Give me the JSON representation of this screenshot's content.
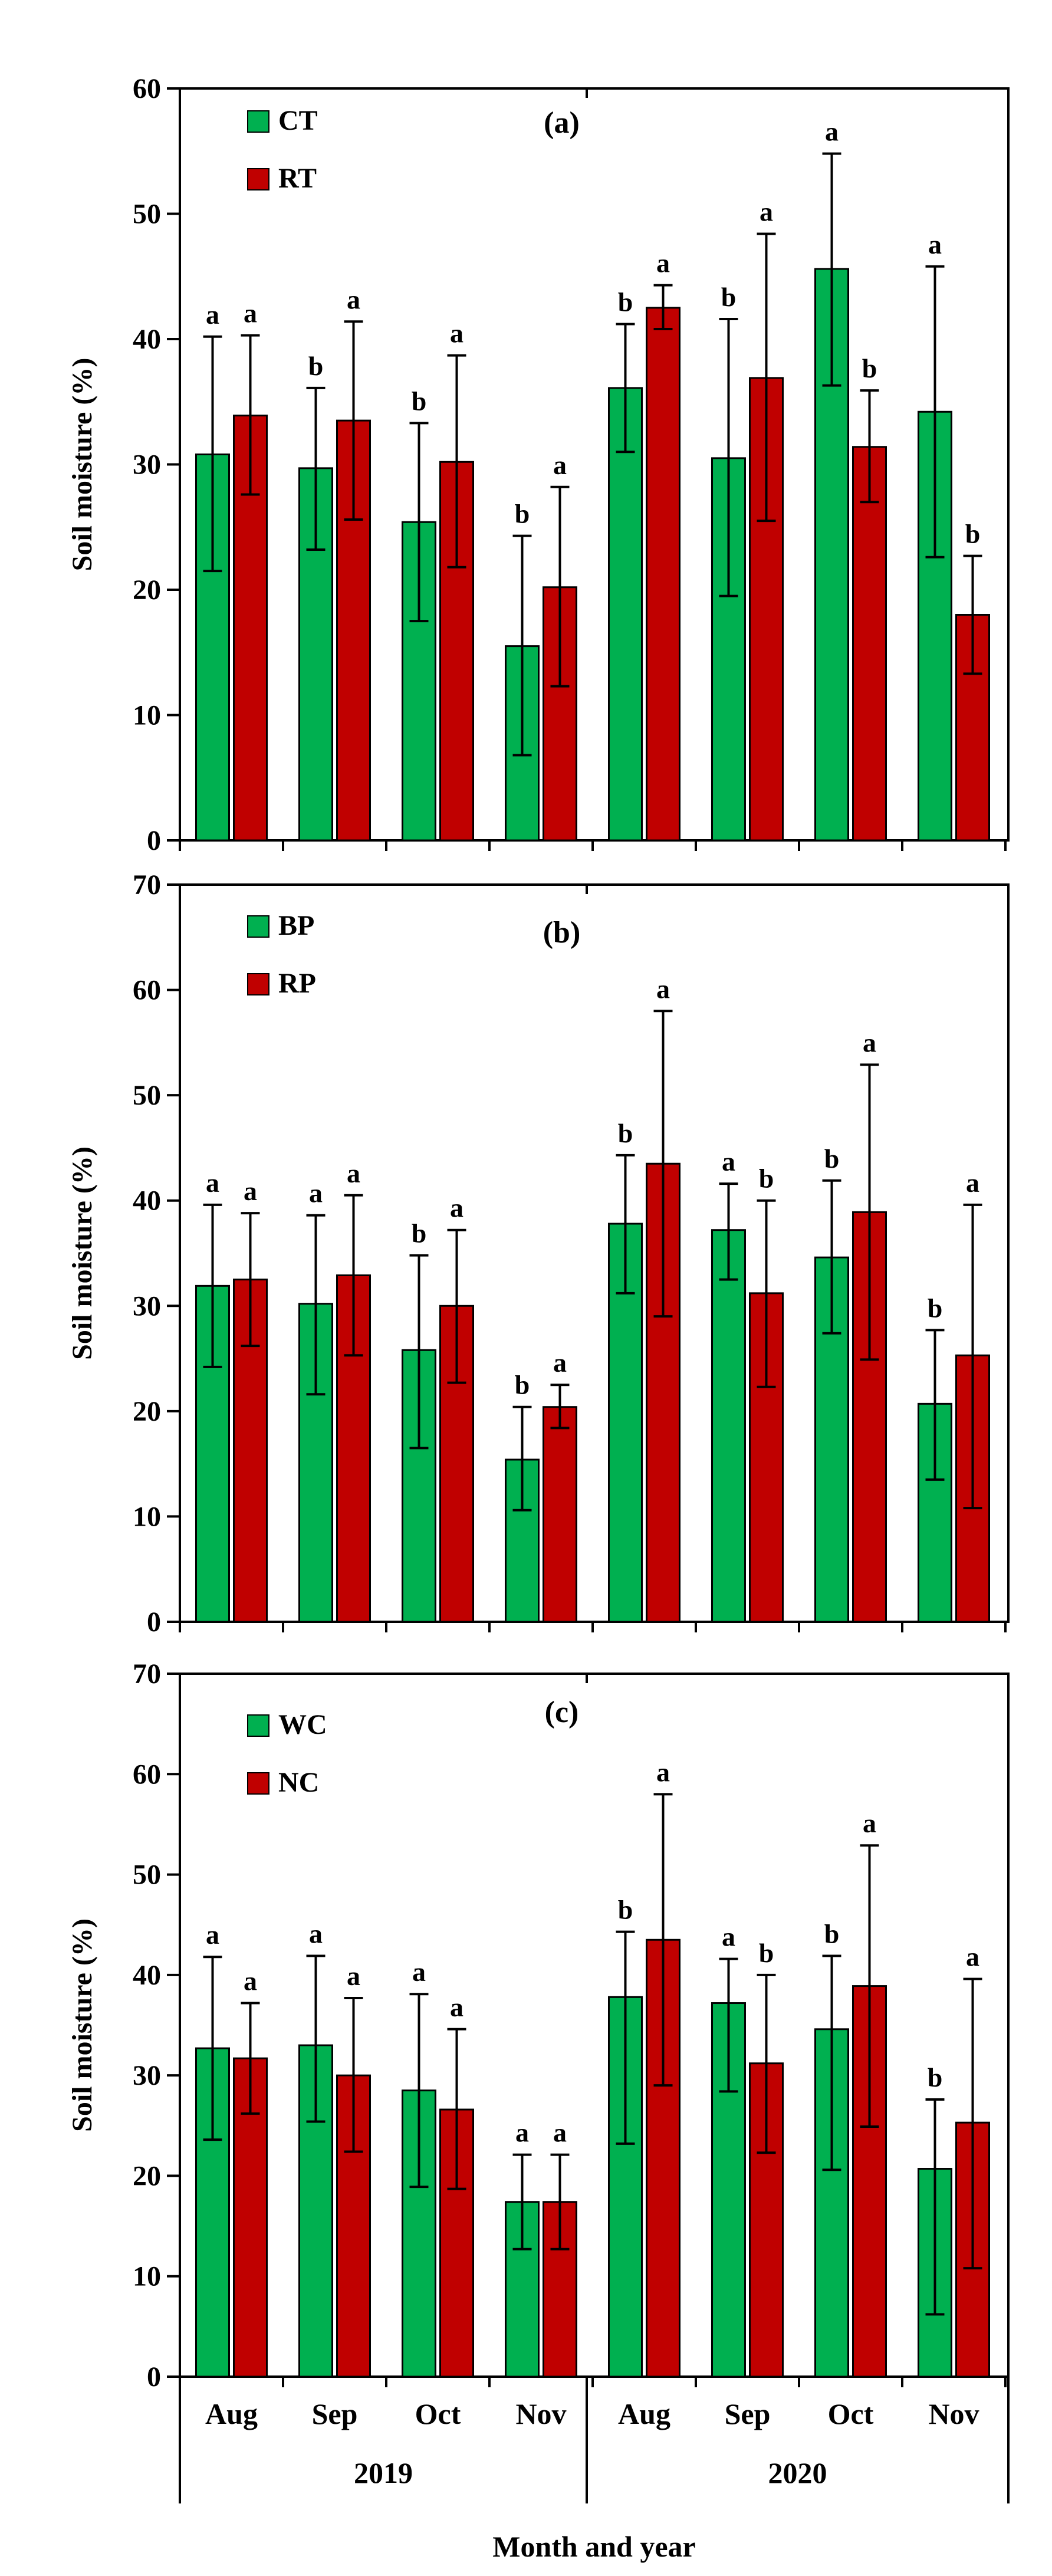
{
  "chart_data": [
    {
      "type": "bar",
      "title": "(a)",
      "ylabel": "Soil moisture (%)",
      "ylim": [
        0,
        60
      ],
      "yticks": [
        0,
        10,
        20,
        30,
        40,
        50,
        60
      ],
      "categories": [
        "Aug",
        "Sep",
        "Oct",
        "Nov",
        "Aug",
        "Sep",
        "Oct",
        "Nov"
      ],
      "series": [
        {
          "name": "CT",
          "color": "#00b050",
          "values": [
            30.8,
            29.7,
            25.4,
            15.5,
            36.1,
            30.5,
            45.6,
            34.2
          ],
          "err_low": [
            21.5,
            23.2,
            17.5,
            6.8,
            31.0,
            19.5,
            36.3,
            22.6
          ],
          "err_high": [
            40.2,
            36.1,
            33.3,
            24.3,
            41.2,
            41.6,
            54.8,
            45.8
          ],
          "labels": [
            "a",
            "b",
            "b",
            "b",
            "b",
            "b",
            "a",
            "a"
          ]
        },
        {
          "name": "RT",
          "color": "#c00000",
          "values": [
            33.9,
            33.5,
            30.2,
            20.2,
            42.5,
            36.9,
            31.4,
            18.0
          ],
          "err_low": [
            27.6,
            25.6,
            21.8,
            12.3,
            40.8,
            25.5,
            27.0,
            13.3
          ],
          "err_high": [
            40.3,
            41.4,
            38.7,
            28.2,
            44.3,
            48.4,
            35.9,
            22.7
          ],
          "labels": [
            "a",
            "a",
            "a",
            "a",
            "a",
            "a",
            "b",
            "b"
          ]
        }
      ]
    },
    {
      "type": "bar",
      "title": "(b)",
      "ylabel": "Soil moisture (%)",
      "ylim": [
        0,
        70
      ],
      "yticks": [
        0,
        10,
        20,
        30,
        40,
        50,
        60,
        70
      ],
      "categories": [
        "Aug",
        "Sep",
        "Oct",
        "Nov",
        "Aug",
        "Sep",
        "Oct",
        "Nov"
      ],
      "series": [
        {
          "name": "BP",
          "color": "#00b050",
          "values": [
            31.9,
            30.2,
            25.8,
            15.4,
            37.8,
            37.2,
            34.6,
            20.7
          ],
          "err_low": [
            24.2,
            21.6,
            16.5,
            10.6,
            31.2,
            32.5,
            27.4,
            13.5
          ],
          "err_high": [
            39.6,
            38.6,
            34.8,
            20.4,
            44.3,
            41.6,
            41.9,
            27.7
          ],
          "labels": [
            "a",
            "a",
            "b",
            "b",
            "b",
            "a",
            "b",
            "b"
          ]
        },
        {
          "name": "RP",
          "color": "#c00000",
          "values": [
            32.5,
            32.9,
            30.0,
            20.4,
            43.5,
            31.2,
            38.9,
            25.3
          ],
          "err_low": [
            26.2,
            25.3,
            22.7,
            18.4,
            29.0,
            22.3,
            24.9,
            10.8
          ],
          "err_high": [
            38.8,
            40.5,
            37.2,
            22.5,
            58.0,
            40.0,
            52.9,
            39.6
          ],
          "labels": [
            "a",
            "a",
            "a",
            "a",
            "a",
            "b",
            "a",
            "a"
          ]
        }
      ]
    },
    {
      "type": "bar",
      "title": "(c)",
      "ylabel": "Soil moisture (%)",
      "ylim": [
        0,
        70
      ],
      "yticks": [
        0,
        10,
        20,
        30,
        40,
        50,
        60,
        70
      ],
      "categories": [
        "Aug",
        "Sep",
        "Oct",
        "Nov",
        "Aug",
        "Sep",
        "Oct",
        "Nov"
      ],
      "series": [
        {
          "name": "WC",
          "color": "#00b050",
          "values": [
            32.7,
            33.0,
            28.5,
            17.4,
            37.8,
            37.2,
            34.6,
            20.7
          ],
          "err_low": [
            23.6,
            25.4,
            18.9,
            12.7,
            23.2,
            28.4,
            20.6,
            6.2
          ],
          "err_high": [
            41.8,
            41.9,
            38.1,
            22.1,
            44.3,
            41.6,
            41.9,
            27.6
          ],
          "labels": [
            "a",
            "a",
            "a",
            "a",
            "b",
            "a",
            "b",
            "b"
          ]
        },
        {
          "name": "NC",
          "color": "#c00000",
          "values": [
            31.7,
            30.0,
            26.6,
            17.4,
            43.5,
            31.2,
            38.9,
            25.3
          ],
          "err_low": [
            26.2,
            22.4,
            18.7,
            12.7,
            29.0,
            22.3,
            24.9,
            10.8
          ],
          "err_high": [
            37.2,
            37.7,
            34.6,
            22.1,
            58.0,
            40.0,
            52.9,
            39.6
          ],
          "labels": [
            "a",
            "a",
            "a",
            "a",
            "a",
            "b",
            "a",
            "a"
          ]
        }
      ],
      "xlabel": "Month  and year",
      "years": [
        "2019",
        "2020"
      ]
    }
  ]
}
